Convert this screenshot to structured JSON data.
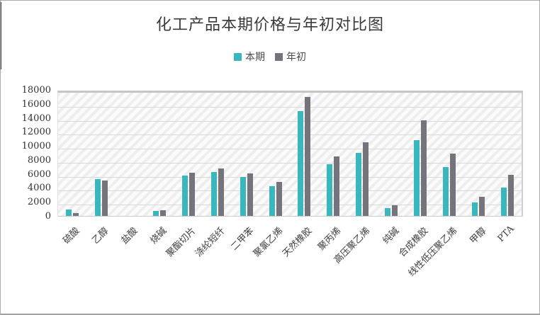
{
  "title": "化工产品本期价格与年初对比图",
  "accent_colors": {
    "current_period": "#39b7bc",
    "year_start": "#75737c"
  },
  "chart_data": {
    "type": "bar",
    "title": "化工产品本期价格与年初对比图",
    "categories": [
      "硫酸",
      "乙醇",
      "盐酸",
      "烧碱",
      "聚酯切片",
      "涤纶短纤",
      "二甲苯",
      "聚氯乙烯",
      "天然橡胶",
      "聚丙烯",
      "高压聚乙烯",
      "纯碱",
      "合成橡胶",
      "线性低压聚乙烯",
      "甲醇",
      "PTA"
    ],
    "series": [
      {
        "name": "本期",
        "color": "#39b7bc",
        "values": [
          900,
          5300,
          0,
          700,
          5800,
          6300,
          5600,
          4300,
          15000,
          7400,
          9000,
          1100,
          10800,
          7000,
          1900,
          4000
        ]
      },
      {
        "name": "年初",
        "color": "#75737c",
        "values": [
          400,
          5100,
          0,
          800,
          6200,
          6800,
          6100,
          4900,
          17000,
          8500,
          10500,
          1500,
          13700,
          8900,
          2700,
          5900
        ]
      }
    ],
    "xlabel": "",
    "ylabel": "",
    "ylim": [
      0,
      18000
    ],
    "ytick_step": 2000,
    "grid": "horizontal",
    "plot_fill": "diagonal-hatch",
    "legend_position": "top"
  }
}
